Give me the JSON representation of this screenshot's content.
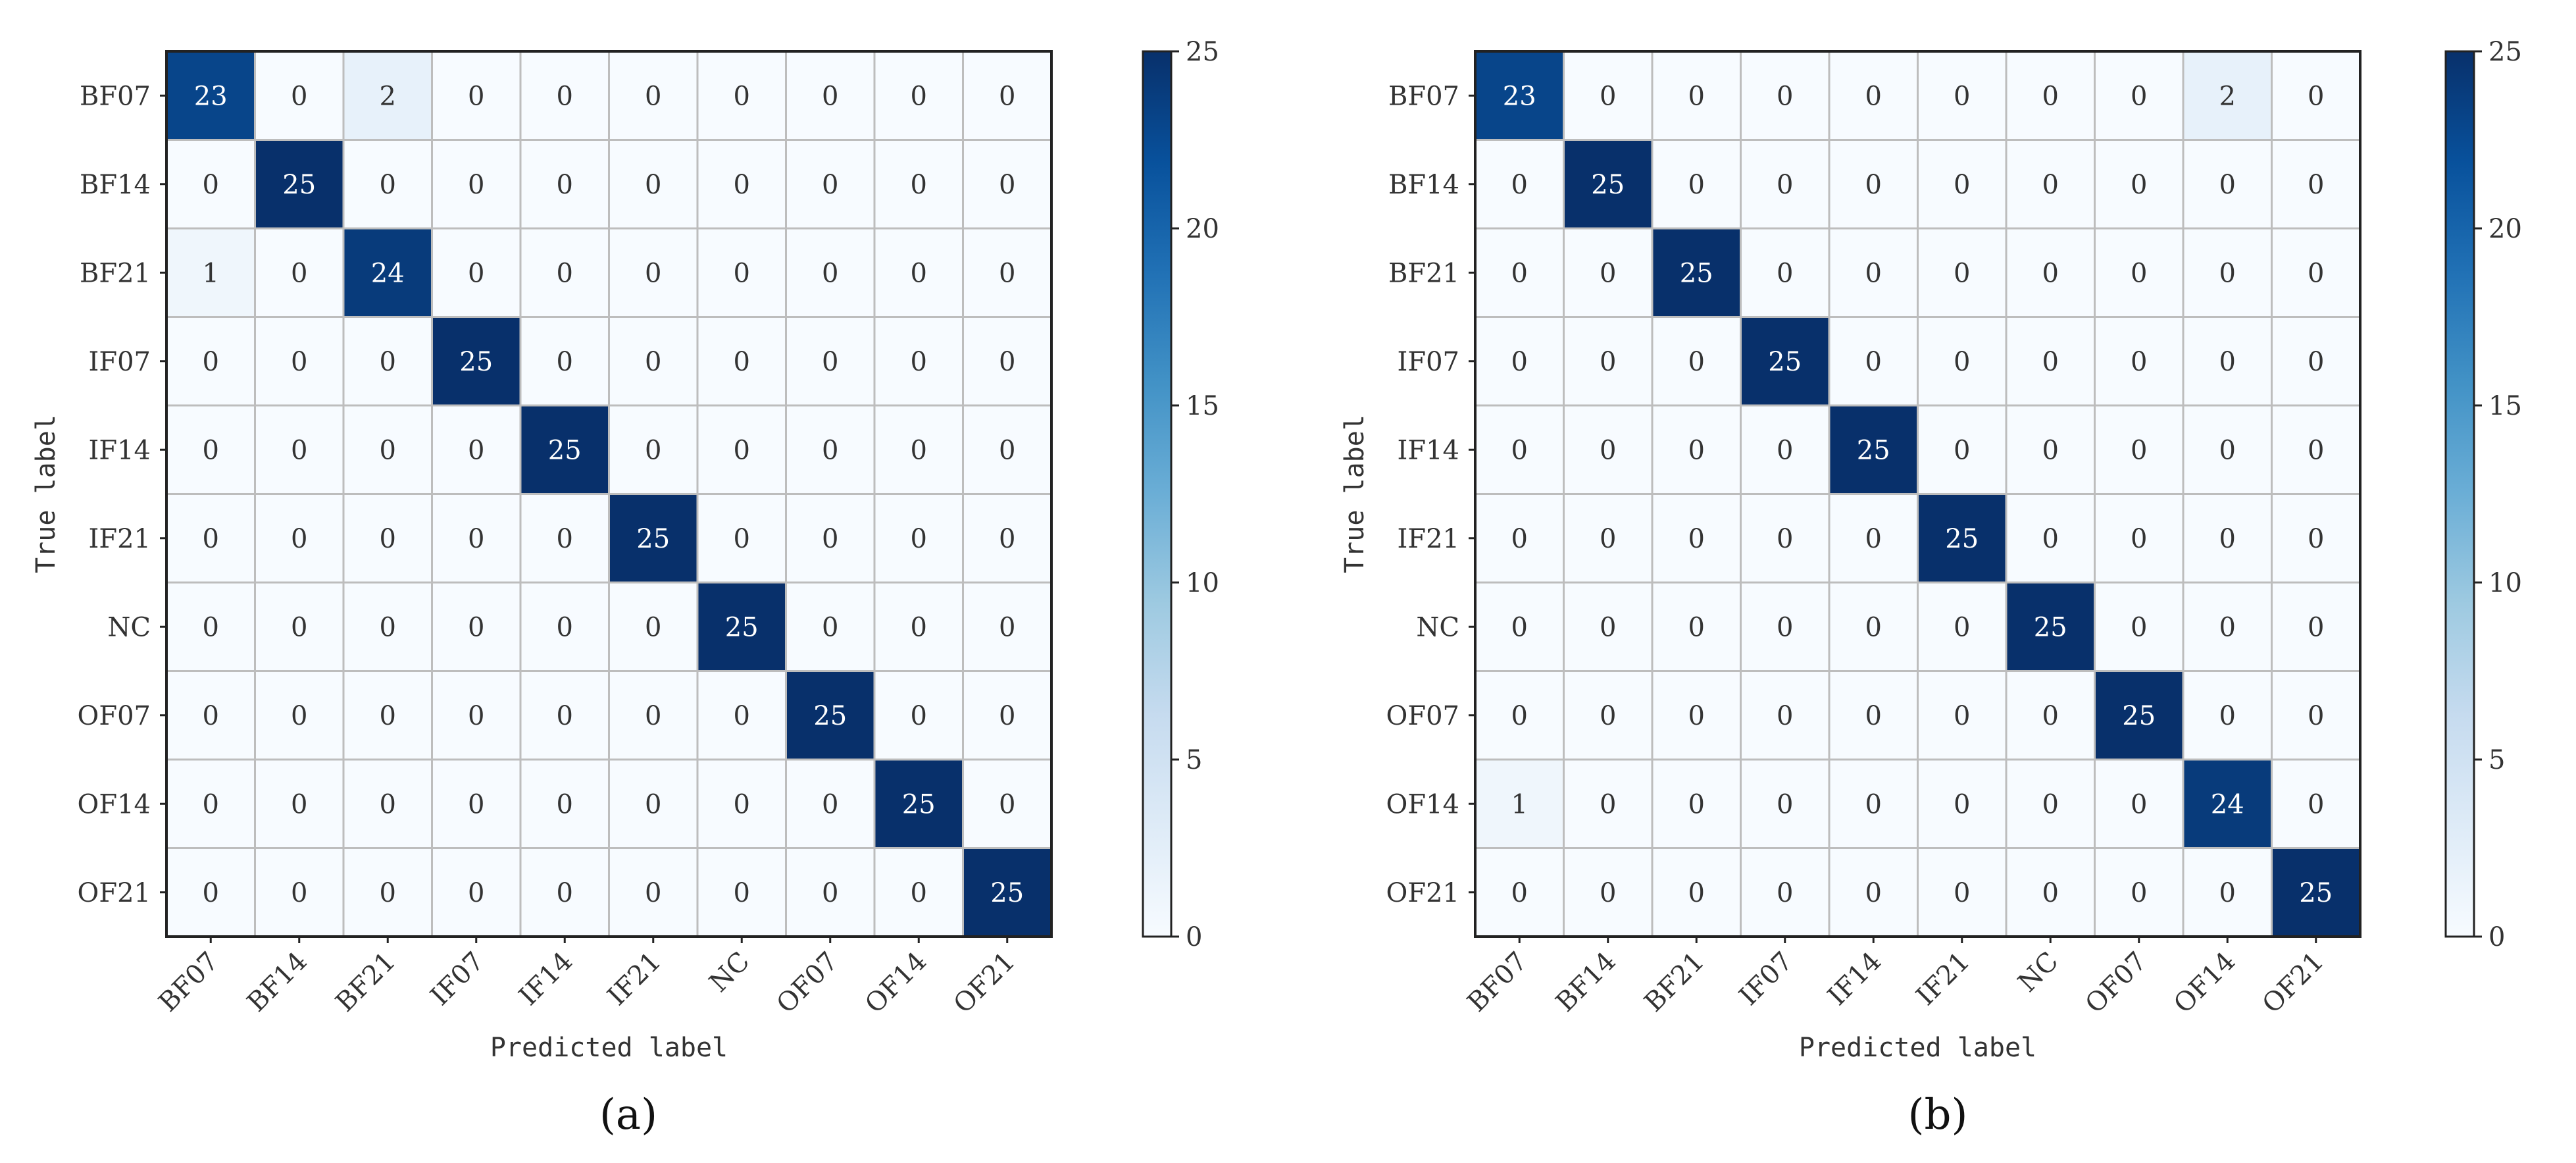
{
  "chart_data": [
    {
      "type": "heatmap",
      "panel_label": "(a)",
      "xlabel": "Predicted label",
      "ylabel": "True label",
      "categories": [
        "BF07",
        "BF14",
        "BF21",
        "IF07",
        "IF14",
        "IF21",
        "NC",
        "OF07",
        "OF14",
        "OF21"
      ],
      "matrix": [
        [
          23,
          0,
          2,
          0,
          0,
          0,
          0,
          0,
          0,
          0
        ],
        [
          0,
          25,
          0,
          0,
          0,
          0,
          0,
          0,
          0,
          0
        ],
        [
          1,
          0,
          24,
          0,
          0,
          0,
          0,
          0,
          0,
          0
        ],
        [
          0,
          0,
          0,
          25,
          0,
          0,
          0,
          0,
          0,
          0
        ],
        [
          0,
          0,
          0,
          0,
          25,
          0,
          0,
          0,
          0,
          0
        ],
        [
          0,
          0,
          0,
          0,
          0,
          25,
          0,
          0,
          0,
          0
        ],
        [
          0,
          0,
          0,
          0,
          0,
          0,
          25,
          0,
          0,
          0
        ],
        [
          0,
          0,
          0,
          0,
          0,
          0,
          0,
          25,
          0,
          0
        ],
        [
          0,
          0,
          0,
          0,
          0,
          0,
          0,
          0,
          25,
          0
        ],
        [
          0,
          0,
          0,
          0,
          0,
          0,
          0,
          0,
          0,
          25
        ]
      ],
      "colorbar": {
        "min": 0,
        "max": 25,
        "ticks": [
          0,
          5,
          10,
          15,
          20,
          25
        ]
      },
      "colormap": "Blues",
      "grid": true
    },
    {
      "type": "heatmap",
      "panel_label": "(b)",
      "xlabel": "Predicted label",
      "ylabel": "True label",
      "categories": [
        "BF07",
        "BF14",
        "BF21",
        "IF07",
        "IF14",
        "IF21",
        "NC",
        "OF07",
        "OF14",
        "OF21"
      ],
      "matrix": [
        [
          23,
          0,
          0,
          0,
          0,
          0,
          0,
          0,
          2,
          0
        ],
        [
          0,
          25,
          0,
          0,
          0,
          0,
          0,
          0,
          0,
          0
        ],
        [
          0,
          0,
          25,
          0,
          0,
          0,
          0,
          0,
          0,
          0
        ],
        [
          0,
          0,
          0,
          25,
          0,
          0,
          0,
          0,
          0,
          0
        ],
        [
          0,
          0,
          0,
          0,
          25,
          0,
          0,
          0,
          0,
          0
        ],
        [
          0,
          0,
          0,
          0,
          0,
          25,
          0,
          0,
          0,
          0
        ],
        [
          0,
          0,
          0,
          0,
          0,
          0,
          25,
          0,
          0,
          0
        ],
        [
          0,
          0,
          0,
          0,
          0,
          0,
          0,
          25,
          0,
          0
        ],
        [
          1,
          0,
          0,
          0,
          0,
          0,
          0,
          0,
          24,
          0
        ],
        [
          0,
          0,
          0,
          0,
          0,
          0,
          0,
          0,
          0,
          25
        ]
      ],
      "colorbar": {
        "min": 0,
        "max": 25,
        "ticks": [
          0,
          5,
          10,
          15,
          20,
          25
        ]
      },
      "colormap": "Blues",
      "grid": true
    }
  ]
}
